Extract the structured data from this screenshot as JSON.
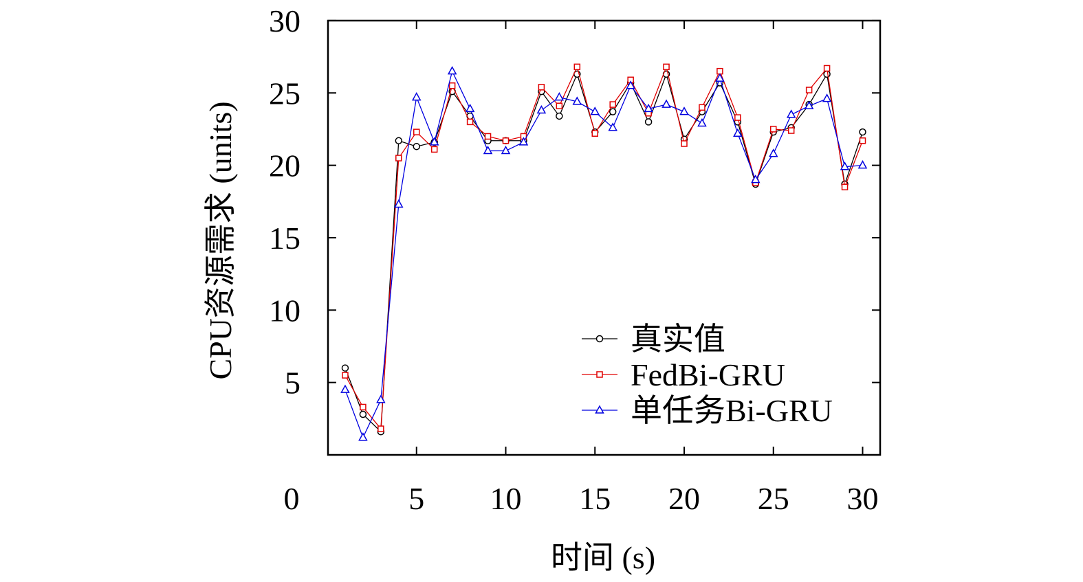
{
  "chart_data": {
    "type": "line",
    "title": "",
    "xlabel": "时间 (s)",
    "ylabel": "CPU资源需求 (units)",
    "xlim": [
      0,
      31
    ],
    "ylim": [
      0,
      30
    ],
    "xticks": [
      5,
      10,
      15,
      20,
      25,
      30
    ],
    "xtick_labels": [
      "5",
      "10",
      "15",
      "20",
      "25",
      "30"
    ],
    "yticks": [
      5,
      10,
      15,
      20,
      25,
      30
    ],
    "ytick_labels": [
      "5",
      "10",
      "15",
      "20",
      "25",
      "30"
    ],
    "origin_label": "0",
    "grid": false,
    "legend_position": "bottom-right",
    "x": [
      1,
      2,
      3,
      4,
      5,
      6,
      7,
      8,
      9,
      10,
      11,
      12,
      13,
      14,
      15,
      16,
      17,
      18,
      19,
      20,
      21,
      22,
      23,
      24,
      25,
      26,
      27,
      28,
      29,
      30
    ],
    "series": [
      {
        "name": "真实值",
        "color": "#000000",
        "marker": "circle",
        "values": [
          6.0,
          2.8,
          1.6,
          21.7,
          21.3,
          21.6,
          25.1,
          23.4,
          21.7,
          21.7,
          21.7,
          25.1,
          23.4,
          26.3,
          22.3,
          23.7,
          25.7,
          23.0,
          26.3,
          21.8,
          23.7,
          25.7,
          23.0,
          18.7,
          22.3,
          22.6,
          24.2,
          26.3,
          18.7,
          22.3
        ]
      },
      {
        "name": "FedBi-GRU",
        "color": "#e00000",
        "marker": "square",
        "values": [
          5.5,
          3.3,
          1.8,
          20.5,
          22.3,
          21.1,
          25.5,
          23.0,
          22.0,
          21.7,
          22.0,
          25.4,
          24.1,
          26.8,
          22.2,
          24.2,
          25.9,
          23.6,
          26.8,
          21.5,
          24.0,
          26.5,
          23.3,
          18.8,
          22.5,
          22.4,
          25.2,
          26.7,
          18.5,
          21.7
        ]
      },
      {
        "name": "单任务Bi-GRU",
        "color": "#0000e0",
        "marker": "triangle",
        "values": [
          4.5,
          1.2,
          3.8,
          17.3,
          24.7,
          21.6,
          26.5,
          23.9,
          21.0,
          21.0,
          21.6,
          23.8,
          24.7,
          24.4,
          23.7,
          22.6,
          25.5,
          23.9,
          24.2,
          23.7,
          22.9,
          26.0,
          22.2,
          19.0,
          20.8,
          23.5,
          24.1,
          24.6,
          19.9,
          20.0
        ]
      }
    ]
  }
}
